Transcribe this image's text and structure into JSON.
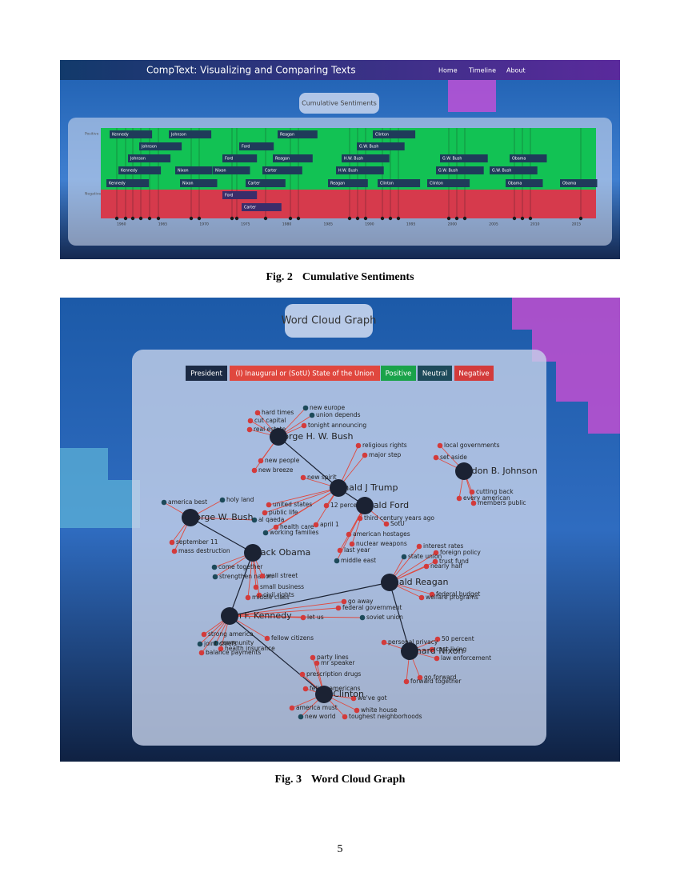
{
  "fig2": {
    "app_title": "CompText: Visualizing and Comparing Texts",
    "nav": [
      "Home",
      "Timeline",
      "About"
    ],
    "panel_title": "Cumulative Sentiments",
    "row_labels": [
      "Positive",
      "Negative"
    ],
    "chips": [
      "Kennedy",
      "Johnson",
      "Reagan",
      "Clinton",
      "Johnson",
      "Ford",
      "G.W. Bush",
      "Johnson",
      "Ford",
      "Reagan",
      "H.W. Bush",
      "G.W. Bush",
      "Obama",
      "Kennedy",
      "Nixon",
      "Nixon",
      "Carter",
      "H.W. Bush",
      "G.W. Bush",
      "G.W. Bush",
      "Kennedy",
      "Nixon",
      "Carter",
      "Reagan",
      "Clinton",
      "Clinton",
      "Obama",
      "Obama",
      "Ford",
      "Carter"
    ],
    "years": [
      "1960",
      "1965",
      "1970",
      "1975",
      "1980",
      "1985",
      "1990",
      "1995",
      "2000",
      "2005",
      "2010",
      "2015"
    ],
    "caption": {
      "label": "Fig. 2",
      "text": "Cumulative Sentiments"
    }
  },
  "fig3": {
    "panel_title": "Word Cloud Graph",
    "legend": [
      {
        "label": "President",
        "color": "#1b2a44"
      },
      {
        "label": "(I) Inaugural or (SotU) State of the Union",
        "color": "#e0473e"
      },
      {
        "label": "Positive",
        "color": "#1aa34a"
      },
      {
        "label": "Neutral",
        "color": "#1d4a5a"
      },
      {
        "label": "Negative",
        "color": "#d33b3b"
      }
    ],
    "presidents": [
      "George H. W. Bush",
      "Lyndon B. Johnson",
      "Donald J Trump",
      "Gerald Ford",
      "George W. Bush",
      "Barack Obama",
      "Ronald Reagan",
      "John F. Kennedy",
      "Richard Nixon",
      "Bill Clinton"
    ],
    "words": [
      {
        "label": "hard times",
        "color": "#d33b3b"
      },
      {
        "label": "new europe",
        "color": "#1d4a5a"
      },
      {
        "label": "union depends",
        "color": "#1d4a5a"
      },
      {
        "label": "tonight announcing",
        "color": "#d33b3b"
      },
      {
        "label": "cut capital",
        "color": "#d33b3b"
      },
      {
        "label": "real estate",
        "color": "#d33b3b"
      },
      {
        "label": "new people",
        "color": "#d33b3b"
      },
      {
        "label": "new breeze",
        "color": "#d33b3b"
      },
      {
        "label": "local governments",
        "color": "#d33b3b"
      },
      {
        "label": "set aside",
        "color": "#d33b3b"
      },
      {
        "label": "cutting back",
        "color": "#d33b3b"
      },
      {
        "label": "every american",
        "color": "#d33b3b"
      },
      {
        "label": "members public",
        "color": "#d33b3b"
      },
      {
        "label": "religious rights",
        "color": "#d33b3b"
      },
      {
        "label": "major step",
        "color": "#d33b3b"
      },
      {
        "label": "new spirit",
        "color": "#d33b3b"
      },
      {
        "label": "united states",
        "color": "#d33b3b"
      },
      {
        "label": "public life",
        "color": "#d33b3b"
      },
      {
        "label": "health care",
        "color": "#d33b3b"
      },
      {
        "label": "working families",
        "color": "#1d4a5a"
      },
      {
        "label": "12 percent",
        "color": "#d33b3b"
      },
      {
        "label": "april 1",
        "color": "#d33b3b"
      },
      {
        "label": "third century years ago",
        "color": "#d33b3b"
      },
      {
        "label": "SotU",
        "color": "#d33b3b"
      },
      {
        "label": "american hostages",
        "color": "#d33b3b"
      },
      {
        "label": "nuclear weapons",
        "color": "#d33b3b"
      },
      {
        "label": "last year",
        "color": "#d33b3b"
      },
      {
        "label": "middle east",
        "color": "#1d4a5a"
      },
      {
        "label": "america best",
        "color": "#1d4a5a"
      },
      {
        "label": "holy land",
        "color": "#1d4a5a"
      },
      {
        "label": "september 11",
        "color": "#d33b3b"
      },
      {
        "label": "mass destruction",
        "color": "#d33b3b"
      },
      {
        "label": "al qaeda",
        "color": "#1d4a5a"
      },
      {
        "label": "come together",
        "color": "#1d4a5a"
      },
      {
        "label": "strengthen nation",
        "color": "#1d4a5a"
      },
      {
        "label": "wall street",
        "color": "#d33b3b"
      },
      {
        "label": "small business",
        "color": "#d33b3b"
      },
      {
        "label": "civil rights",
        "color": "#d33b3b"
      },
      {
        "label": "middle class",
        "color": "#d33b3b"
      },
      {
        "label": "interest rates",
        "color": "#d33b3b"
      },
      {
        "label": "foreign policy",
        "color": "#d33b3b"
      },
      {
        "label": "state union",
        "color": "#1d4a5a"
      },
      {
        "label": "trust fund",
        "color": "#d33b3b"
      },
      {
        "label": "nearly half",
        "color": "#d33b3b"
      },
      {
        "label": "federal budget",
        "color": "#d33b3b"
      },
      {
        "label": "welfare programs",
        "color": "#d33b3b"
      },
      {
        "label": "let us",
        "color": "#d33b3b"
      },
      {
        "label": "fellow citizens",
        "color": "#d33b3b"
      },
      {
        "label": "strong america",
        "color": "#d33b3b"
      },
      {
        "label": "community",
        "color": "#1d4a5a"
      },
      {
        "label": "health insurance",
        "color": "#d33b3b"
      },
      {
        "label": "joint chiefs",
        "color": "#1d4a5a"
      },
      {
        "label": "balance payments",
        "color": "#d33b3b"
      },
      {
        "label": "soviet union",
        "color": "#1d4a5a"
      },
      {
        "label": "federal government",
        "color": "#d33b3b"
      },
      {
        "label": "go away",
        "color": "#d33b3b"
      },
      {
        "label": "50 percent",
        "color": "#d33b3b"
      },
      {
        "label": "personal privacy",
        "color": "#d33b3b"
      },
      {
        "label": "cost living",
        "color": "#d33b3b"
      },
      {
        "label": "law enforcement",
        "color": "#d33b3b"
      },
      {
        "label": "go forward",
        "color": "#d33b3b"
      },
      {
        "label": "forward together",
        "color": "#d33b3b"
      },
      {
        "label": "party lines",
        "color": "#d33b3b"
      },
      {
        "label": "mr speaker",
        "color": "#d33b3b"
      },
      {
        "label": "prescription drugs",
        "color": "#d33b3b"
      },
      {
        "label": "fellow americans",
        "color": "#d33b3b"
      },
      {
        "label": "america must",
        "color": "#d33b3b"
      },
      {
        "label": "white house",
        "color": "#d33b3b"
      },
      {
        "label": "toughest neighborhoods",
        "color": "#d33b3b"
      },
      {
        "label": "new world",
        "color": "#1d4a5a"
      },
      {
        "label": "we've got",
        "color": "#d33b3b"
      }
    ],
    "caption": {
      "label": "Fig. 3",
      "text": "Word Cloud Graph"
    }
  },
  "page_number": "5"
}
